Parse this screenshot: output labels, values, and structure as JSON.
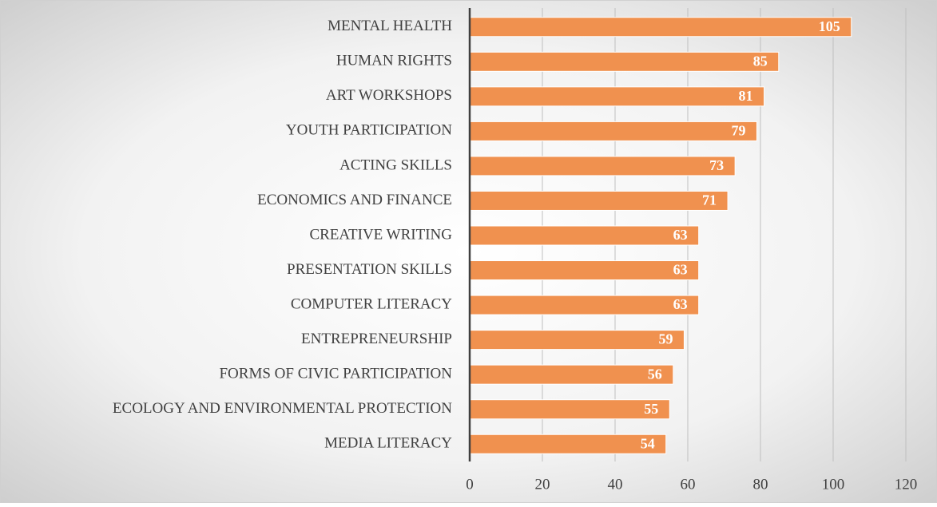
{
  "chart_data": {
    "type": "bar",
    "orientation": "horizontal",
    "categories": [
      "MENTAL HEALTH",
      "HUMAN RIGHTS",
      "ART WORKSHOPS",
      "YOUTH PARTICIPATION",
      "ACTING SKILLS",
      "ECONOMICS AND FINANCE",
      "CREATIVE WRITING",
      "PRESENTATION SKILLS",
      "COMPUTER LITERACY",
      "ENTREPRENEURSHIP",
      "FORMS OF CIVIC PARTICIPATION",
      "ECOLOGY AND ENVIRONMENTAL PROTECTION",
      "MEDIA LITERACY"
    ],
    "values": [
      105,
      85,
      81,
      79,
      73,
      71,
      63,
      63,
      63,
      59,
      56,
      55,
      54
    ],
    "color": "#f0914f",
    "xlim": [
      0,
      120
    ],
    "xticks": [
      0,
      20,
      40,
      60,
      80,
      100,
      120
    ],
    "grid": true
  }
}
